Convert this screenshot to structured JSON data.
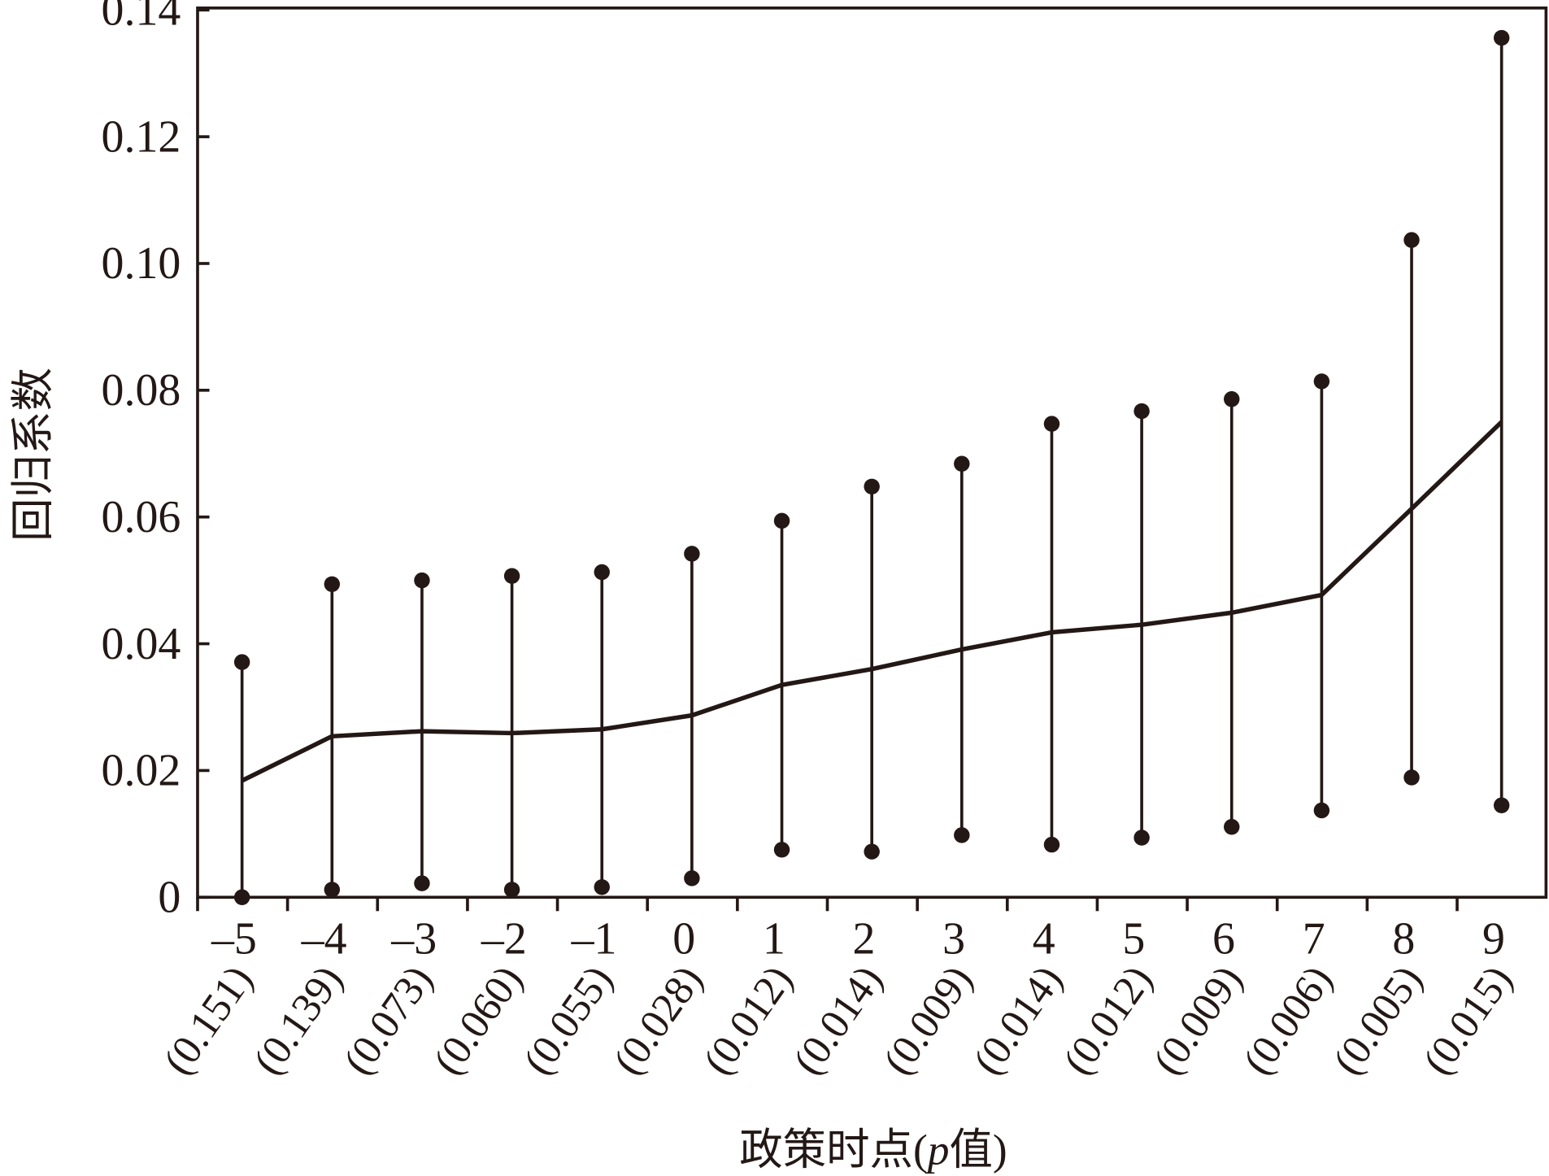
{
  "chart_data": {
    "type": "line",
    "title": "",
    "xlabel": "政策时点(p值)",
    "xlabel_parts": {
      "prefix": "政策时点(",
      "italic": "p",
      "suffix": "值)"
    },
    "ylabel": "回归系数",
    "ylim": [
      0,
      0.14
    ],
    "yticks": [
      "0",
      "0.02",
      "0.04",
      "0.06",
      "0.08",
      "0.10",
      "0.12",
      "0.14"
    ],
    "ytick_values": [
      0,
      0.02,
      0.04,
      0.06,
      0.08,
      0.1,
      0.12,
      0.14
    ],
    "categories": [
      "–5",
      "–4",
      "–3",
      "–2",
      "–1",
      "0",
      "1",
      "2",
      "3",
      "4",
      "5",
      "6",
      "7",
      "8",
      "9"
    ],
    "p_values": [
      "(0.151)",
      "(0.139)",
      "(0.073)",
      "(0.060)",
      "(0.055)",
      "(0.028)",
      "(0.012)",
      "(0.014)",
      "(0.009)",
      "(0.014)",
      "(0.012)",
      "(0.009)",
      "(0.006)",
      "(0.005)",
      "(0.015)"
    ],
    "coefficient": [
      0.0184,
      0.0254,
      0.0262,
      0.0259,
      0.0265,
      0.0287,
      0.0335,
      0.036,
      0.0391,
      0.0418,
      0.043,
      0.0449,
      0.0477,
      0.0613,
      0.075
    ],
    "ci_upper": [
      0.0371,
      0.0494,
      0.05,
      0.0507,
      0.0513,
      0.0542,
      0.0594,
      0.0648,
      0.0684,
      0.0747,
      0.0767,
      0.0786,
      0.0814,
      0.1037,
      0.1356
    ],
    "ci_lower": [
      0.0,
      0.0012,
      0.0022,
      0.0012,
      0.0016,
      0.003,
      0.0075,
      0.0072,
      0.0098,
      0.0083,
      0.0094,
      0.0111,
      0.0137,
      0.0189,
      0.0145
    ],
    "grid": false,
    "legend": "none",
    "color": "#231815"
  }
}
